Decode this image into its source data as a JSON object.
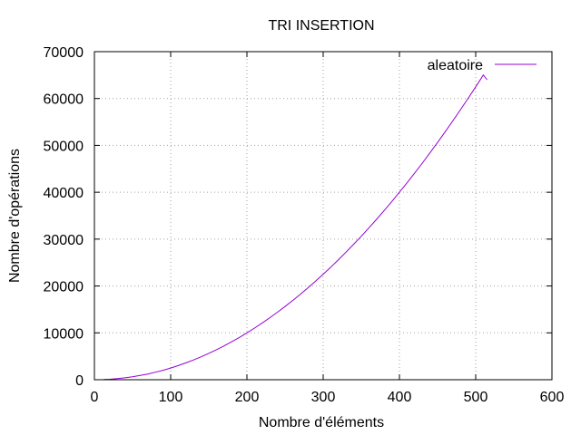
{
  "chart_data": {
    "type": "line",
    "title": "TRI INSERTION",
    "xlabel": "Nombre d'éléments",
    "ylabel": "Nombre d'opérations",
    "xlim": [
      0,
      600
    ],
    "ylim": [
      0,
      70000
    ],
    "xticks": [
      0,
      100,
      200,
      300,
      400,
      500,
      600
    ],
    "yticks": [
      0,
      10000,
      20000,
      30000,
      40000,
      50000,
      60000,
      70000
    ],
    "grid": true,
    "legend_position": "top-right",
    "series": [
      {
        "name": "aleatoire",
        "color": "#9400d3",
        "x": [
          12,
          20,
          30,
          40,
          50,
          60,
          70,
          80,
          90,
          100,
          110,
          120,
          130,
          140,
          150,
          160,
          170,
          180,
          190,
          200,
          210,
          220,
          230,
          240,
          250,
          260,
          270,
          280,
          290,
          300,
          310,
          320,
          330,
          340,
          350,
          360,
          370,
          380,
          390,
          400,
          410,
          420,
          430,
          440,
          450,
          460,
          470,
          480,
          490,
          500,
          505,
          510,
          515
        ],
        "y": [
          40,
          100,
          230,
          400,
          620,
          900,
          1220,
          1600,
          2020,
          2500,
          3020,
          3600,
          4220,
          4900,
          5620,
          6400,
          7220,
          8100,
          9020,
          10000,
          11020,
          12100,
          13220,
          14400,
          15620,
          16900,
          18220,
          19600,
          21020,
          22500,
          24020,
          25600,
          27220,
          28900,
          30620,
          32400,
          34220,
          36100,
          38020,
          40000,
          42020,
          44100,
          46220,
          48400,
          50620,
          52900,
          55220,
          57600,
          60020,
          62500,
          63760,
          65030,
          64000
        ]
      }
    ]
  }
}
